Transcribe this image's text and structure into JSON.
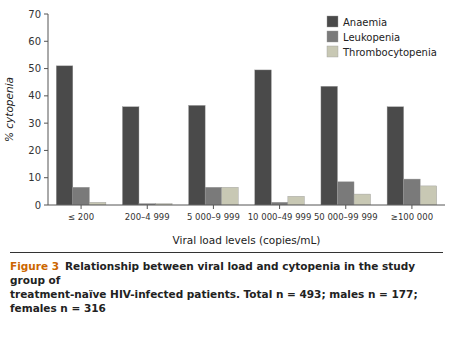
{
  "chart_data": {
    "type": "bar",
    "categories": [
      "≤ 200",
      "200–4 999",
      "5 000–9 999",
      "10 000–49 999",
      "50 000–99 999",
      "≥100 000"
    ],
    "series": [
      {
        "name": "Anaemia",
        "color": "#4a4a4a",
        "values": [
          51,
          36,
          36.5,
          49.5,
          43.5,
          36
        ]
      },
      {
        "name": "Leukopenia",
        "color": "#7a7a7a",
        "values": [
          6.5,
          0.5,
          6.5,
          1.0,
          8.5,
          9.5
        ]
      },
      {
        "name": "Thrombocytopenia",
        "color": "#c8c8b4",
        "values": [
          1.0,
          0.5,
          6.5,
          3.2,
          4.0,
          7.0
        ]
      }
    ],
    "xlabel": "Viral load levels (copies/mL)",
    "ylabel": "% cytopenia",
    "ylim": [
      0,
      70
    ],
    "yticks": [
      0,
      10,
      20,
      30,
      40,
      50,
      60,
      70
    ],
    "grid": false,
    "legend": "upper right",
    "annotations": [
      {
        "text": "Figure 3",
        "color": "#cc6600"
      },
      {
        "text": "Relationship between viral load and cytopenia in the study group of"
      },
      {
        "text": "treatment-naïve HIV-infected patients. Total n = 493; males n = 177; females n = 316"
      }
    ]
  }
}
